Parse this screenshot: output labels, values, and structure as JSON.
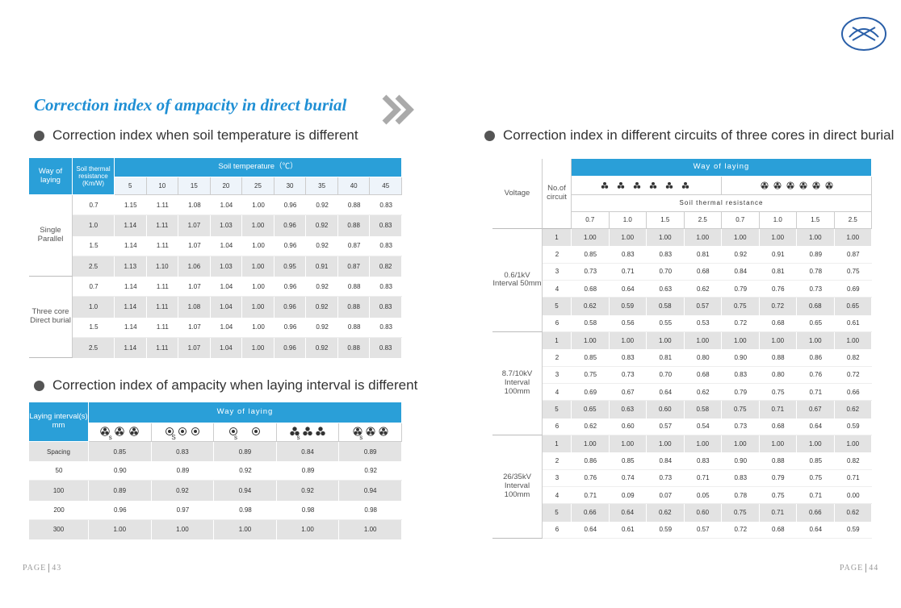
{
  "title": "Correction index of ampacity in direct burial",
  "soil_temp": {
    "heading": "Correction index when soil temperature is different",
    "headers": {
      "way": "Way of laying",
      "resistance": "Soil thermal resistance (Km/W)",
      "temperature": "Soil temperature（℃）"
    },
    "temperatures": [
      "5",
      "10",
      "15",
      "20",
      "25",
      "30",
      "35",
      "40",
      "45"
    ],
    "groups": [
      {
        "name": "Single Parallel",
        "rows": [
          {
            "resistance": "0.7",
            "values": [
              "1.15",
              "1.11",
              "1.08",
              "1.04",
              "1.00",
              "0.96",
              "0.92",
              "0.88",
              "0.83"
            ]
          },
          {
            "resistance": "1.0",
            "values": [
              "1.14",
              "1.11",
              "1.07",
              "1.03",
              "1.00",
              "0.96",
              "0.92",
              "0.88",
              "0.83"
            ]
          },
          {
            "resistance": "1.5",
            "values": [
              "1.14",
              "1.11",
              "1.07",
              "1.04",
              "1.00",
              "0.96",
              "0.92",
              "0.87",
              "0.83"
            ]
          },
          {
            "resistance": "2.5",
            "values": [
              "1.13",
              "1.10",
              "1.06",
              "1.03",
              "1.00",
              "0.95",
              "0.91",
              "0.87",
              "0.82"
            ]
          }
        ]
      },
      {
        "name": "Three core Direct burial",
        "rows": [
          {
            "resistance": "0.7",
            "values": [
              "1.14",
              "1.11",
              "1.07",
              "1.04",
              "1.00",
              "0.96",
              "0.92",
              "0.88",
              "0.83"
            ]
          },
          {
            "resistance": "1.0",
            "values": [
              "1.14",
              "1.11",
              "1.08",
              "1.04",
              "1.00",
              "0.96",
              "0.92",
              "0.88",
              "0.83"
            ]
          },
          {
            "resistance": "1.5",
            "values": [
              "1.14",
              "1.11",
              "1.07",
              "1.04",
              "1.00",
              "0.96",
              "0.92",
              "0.88",
              "0.83"
            ]
          },
          {
            "resistance": "2.5",
            "values": [
              "1.14",
              "1.11",
              "1.07",
              "1.04",
              "1.00",
              "0.96",
              "0.92",
              "0.88",
              "0.83"
            ]
          }
        ]
      }
    ]
  },
  "interval": {
    "heading": "Correction index of ampacity when laying interval is different",
    "headers": {
      "interval": "Laying interval(s) mm",
      "way": "Way of laying"
    },
    "icon_labels": [
      "s",
      "S",
      "s",
      "s",
      "s"
    ],
    "rows": [
      {
        "interval": "Spacing",
        "values": [
          "0.85",
          "0.83",
          "0.89",
          "0.84",
          "0.89"
        ]
      },
      {
        "interval": "50",
        "values": [
          "0.90",
          "0.89",
          "0.92",
          "0.89",
          "0.92"
        ]
      },
      {
        "interval": "100",
        "values": [
          "0.89",
          "0.92",
          "0.94",
          "0.92",
          "0.94"
        ]
      },
      {
        "interval": "200",
        "values": [
          "0.96",
          "0.97",
          "0.98",
          "0.98",
          "0.98"
        ]
      },
      {
        "interval": "300",
        "values": [
          "1.00",
          "1.00",
          "1.00",
          "1.00",
          "1.00"
        ]
      }
    ]
  },
  "circuits": {
    "heading": "Correction index in different circuits of three cores in direct burial",
    "headers": {
      "voltage": "Voltage",
      "circuit": "No.of circuit",
      "way": "Way of laying",
      "resistance": "Soil thermal resistance"
    },
    "resistances": [
      "0.7",
      "1.0",
      "1.5",
      "2.5",
      "0.7",
      "1.0",
      "1.5",
      "2.5"
    ],
    "groups": [
      {
        "name": "0.6/1kV Interval 50mm",
        "rows": [
          {
            "circuit": "1",
            "values": [
              "1.00",
              "1.00",
              "1.00",
              "1.00",
              "1.00",
              "1.00",
              "1.00",
              "1.00"
            ]
          },
          {
            "circuit": "2",
            "values": [
              "0.85",
              "0.83",
              "0.83",
              "0.81",
              "0.92",
              "0.91",
              "0.89",
              "0.87"
            ]
          },
          {
            "circuit": "3",
            "values": [
              "0.73",
              "0.71",
              "0.70",
              "0.68",
              "0.84",
              "0.81",
              "0.78",
              "0.75"
            ]
          },
          {
            "circuit": "4",
            "values": [
              "0.68",
              "0.64",
              "0.63",
              "0.62",
              "0.79",
              "0.76",
              "0.73",
              "0.69"
            ]
          },
          {
            "circuit": "5",
            "values": [
              "0.62",
              "0.59",
              "0.58",
              "0.57",
              "0.75",
              "0.72",
              "0.68",
              "0.65"
            ]
          },
          {
            "circuit": "6",
            "values": [
              "0.58",
              "0.56",
              "0.55",
              "0.53",
              "0.72",
              "0.68",
              "0.65",
              "0.61"
            ]
          }
        ]
      },
      {
        "name": "8.7/10kV Interval 100mm",
        "rows": [
          {
            "circuit": "1",
            "values": [
              "1.00",
              "1.00",
              "1.00",
              "1.00",
              "1.00",
              "1.00",
              "1.00",
              "1.00"
            ]
          },
          {
            "circuit": "2",
            "values": [
              "0.85",
              "0.83",
              "0.81",
              "0.80",
              "0.90",
              "0.88",
              "0.86",
              "0.82"
            ]
          },
          {
            "circuit": "3",
            "values": [
              "0.75",
              "0.73",
              "0.70",
              "0.68",
              "0.83",
              "0.80",
              "0.76",
              "0.72"
            ]
          },
          {
            "circuit": "4",
            "values": [
              "0.69",
              "0.67",
              "0.64",
              "0.62",
              "0.79",
              "0.75",
              "0.71",
              "0.66"
            ]
          },
          {
            "circuit": "5",
            "values": [
              "0.65",
              "0.63",
              "0.60",
              "0.58",
              "0.75",
              "0.71",
              "0.67",
              "0.62"
            ]
          },
          {
            "circuit": "6",
            "values": [
              "0.62",
              "0.60",
              "0.57",
              "0.54",
              "0.73",
              "0.68",
              "0.64",
              "0.59"
            ]
          }
        ]
      },
      {
        "name": "26/35kV Interval 100mm",
        "rows": [
          {
            "circuit": "1",
            "values": [
              "1.00",
              "1.00",
              "1.00",
              "1.00",
              "1.00",
              "1.00",
              "1.00",
              "1.00"
            ]
          },
          {
            "circuit": "2",
            "values": [
              "0.86",
              "0.85",
              "0.84",
              "0.83",
              "0.90",
              "0.88",
              "0.85",
              "0.82"
            ]
          },
          {
            "circuit": "3",
            "values": [
              "0.76",
              "0.74",
              "0.73",
              "0.71",
              "0.83",
              "0.79",
              "0.75",
              "0.71"
            ]
          },
          {
            "circuit": "4",
            "values": [
              "0.71",
              "0.09",
              "0.07",
              "0.05",
              "0.78",
              "0.75",
              "0.71",
              "0.00"
            ]
          },
          {
            "circuit": "5",
            "values": [
              "0.66",
              "0.64",
              "0.62",
              "0.60",
              "0.75",
              "0.71",
              "0.66",
              "0.62"
            ]
          },
          {
            "circuit": "6",
            "values": [
              "0.64",
              "0.61",
              "0.59",
              "0.57",
              "0.72",
              "0.68",
              "0.64",
              "0.59"
            ]
          }
        ]
      }
    ]
  },
  "footer": {
    "left": {
      "label": "PAGE",
      "number": "43"
    },
    "right": {
      "label": "PAGE",
      "number": "44"
    }
  }
}
